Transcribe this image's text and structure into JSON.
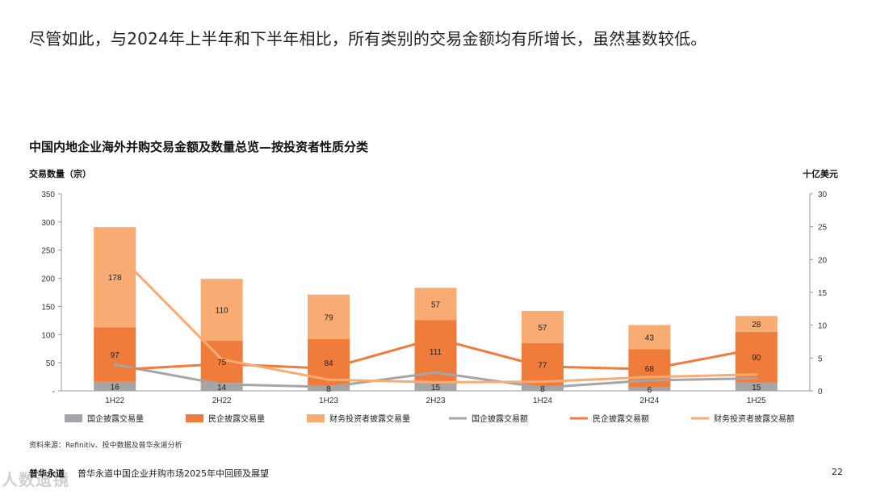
{
  "headline": "尽管如此，与2024年上半年和下半年相比，所有类别的交易金额均有所增长，虽然基数较低。",
  "chart_data": {
    "type": "bar",
    "title": "中国内地企业海外并购交易金额及数量总览—按投资者性质分类",
    "ylabel": "交易数量（宗）",
    "ylabel_right": "十亿美元",
    "categories": [
      "1H22",
      "2H22",
      "1H23",
      "2H23",
      "1H24",
      "2H24",
      "1H25"
    ],
    "ylim": [
      0,
      350
    ],
    "yticks": [
      0,
      50,
      100,
      150,
      200,
      250,
      300,
      350
    ],
    "ylim_right": [
      0,
      30
    ],
    "yticks_right": [
      0,
      5,
      10,
      15,
      20,
      25,
      30
    ],
    "bar_series": [
      {
        "name": "国企披露交易量",
        "color": "#a3a5a8",
        "values": [
          16,
          14,
          8,
          15,
          8,
          6,
          15
        ]
      },
      {
        "name": "民企披露交易量",
        "color": "#f07c3b",
        "values": [
          97,
          75,
          84,
          111,
          77,
          68,
          90
        ]
      },
      {
        "name": "财务投资者披露交易量",
        "color": "#f8ab72",
        "values": [
          178,
          110,
          79,
          57,
          57,
          43,
          28
        ]
      }
    ],
    "line_series": [
      {
        "name": "国企披露交易额",
        "color": "#a3a5a8",
        "values": [
          4,
          1,
          0.6,
          2.8,
          0.5,
          1.6,
          1.9
        ]
      },
      {
        "name": "民企披露交易额",
        "color": "#f07c3b",
        "values": [
          3.2,
          4.1,
          3.4,
          8,
          3.7,
          3.3,
          6.4
        ]
      },
      {
        "name": "财务投资者披露交易额",
        "color": "#f8ab72",
        "values": [
          21.3,
          4.8,
          1.7,
          1.3,
          1.4,
          2.1,
          2.5
        ]
      }
    ],
    "grid": false,
    "legend_position": "bottom"
  },
  "source": "资料来源：Refinitiv、投中数据及普华永道分析",
  "footer": {
    "brand": "普华永道",
    "text": "普华永道中国企业并购市场2025年中回顾及展望",
    "page": "22"
  },
  "watermark": "人数遗镜"
}
